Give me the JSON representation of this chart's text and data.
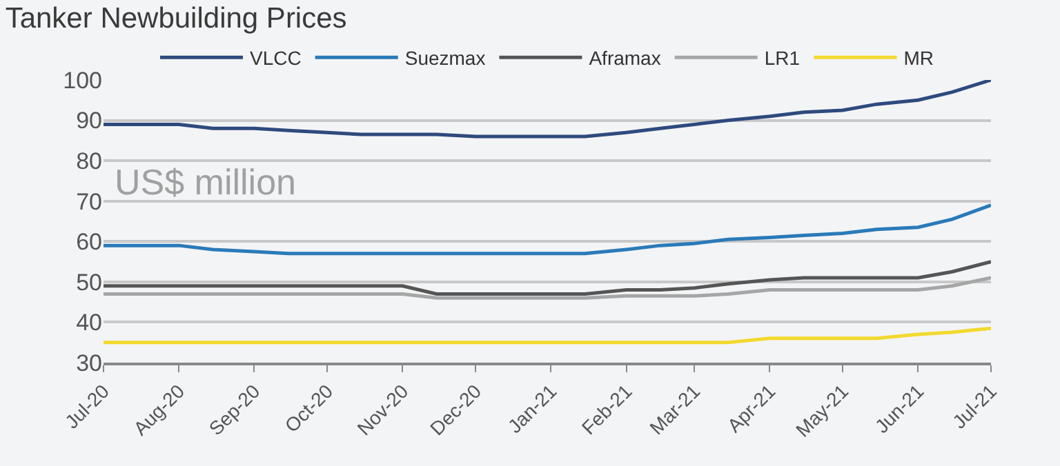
{
  "chart_data": {
    "type": "line",
    "title": "Tanker Newbuilding Prices",
    "annotations": [
      "US$ million"
    ],
    "x": [
      "2020-07-01",
      "2020-07-15",
      "2020-08-01",
      "2020-08-15",
      "2020-09-01",
      "2020-09-15",
      "2020-10-01",
      "2020-10-15",
      "2020-11-01",
      "2020-11-15",
      "2020-12-01",
      "2020-12-15",
      "2021-01-01",
      "2021-01-15",
      "2021-02-01",
      "2021-02-15",
      "2021-03-01",
      "2021-03-15",
      "2021-04-01",
      "2021-04-15",
      "2021-05-01",
      "2021-05-15",
      "2021-06-01",
      "2021-06-15",
      "2021-07-01"
    ],
    "series": [
      {
        "name": "VLCC",
        "color": "#2e4a7d",
        "values": [
          89,
          89,
          89,
          88,
          88,
          87.5,
          87,
          86.5,
          86.5,
          86.5,
          86,
          86,
          86,
          86,
          87,
          88,
          89,
          90,
          91,
          92,
          92.5,
          94,
          95,
          97,
          100
        ]
      },
      {
        "name": "Suezmax",
        "color": "#2a7ab8",
        "values": [
          59,
          59,
          59,
          58,
          57.5,
          57,
          57,
          57,
          57,
          57,
          57,
          57,
          57,
          57,
          58,
          59,
          59.5,
          60.5,
          61,
          61.5,
          62,
          63,
          63.5,
          65.5,
          69
        ]
      },
      {
        "name": "Aframax",
        "color": "#555555",
        "values": [
          49,
          49,
          49,
          49,
          49,
          49,
          49,
          49,
          49,
          47,
          47,
          47,
          47,
          47,
          48,
          48,
          48.5,
          49.5,
          50.5,
          51,
          51,
          51,
          51,
          52.5,
          55
        ]
      },
      {
        "name": "LR1",
        "color": "#a6a6a6",
        "values": [
          47,
          47,
          47,
          47,
          47,
          47,
          47,
          47,
          47,
          46,
          46,
          46,
          46,
          46,
          46.5,
          46.5,
          46.5,
          47,
          48,
          48,
          48,
          48,
          48,
          49,
          51
        ]
      },
      {
        "name": "MR",
        "color": "#f2d92e",
        "values": [
          35,
          35,
          35,
          35,
          35,
          35,
          35,
          35,
          35,
          35,
          35,
          35,
          35,
          35,
          35,
          35,
          35,
          35,
          36,
          36,
          36,
          36,
          37,
          37.5,
          38.5
        ]
      }
    ],
    "xlim": [
      "2020-07-01",
      "2021-07-01"
    ],
    "xticks": [
      {
        "value": "2020-07-01",
        "label": "Jul-20"
      },
      {
        "value": "2020-08-01",
        "label": "Aug-20"
      },
      {
        "value": "2020-09-01",
        "label": "Sep-20"
      },
      {
        "value": "2020-10-01",
        "label": "Oct-20"
      },
      {
        "value": "2020-11-01",
        "label": "Nov-20"
      },
      {
        "value": "2020-12-01",
        "label": "Dec-20"
      },
      {
        "value": "2021-01-01",
        "label": "Jan-21"
      },
      {
        "value": "2021-02-01",
        "label": "Feb-21"
      },
      {
        "value": "2021-03-01",
        "label": "Mar-21"
      },
      {
        "value": "2021-04-01",
        "label": "Apr-21"
      },
      {
        "value": "2021-05-01",
        "label": "May-21"
      },
      {
        "value": "2021-06-01",
        "label": "Jun-21"
      },
      {
        "value": "2021-07-01",
        "label": "Jul-21"
      }
    ],
    "ylim": [
      30,
      100
    ],
    "yticks": [
      30,
      40,
      50,
      60,
      70,
      80,
      90,
      100
    ],
    "grid": "y",
    "legend": "top",
    "marker": "none",
    "line_style": "solid"
  }
}
